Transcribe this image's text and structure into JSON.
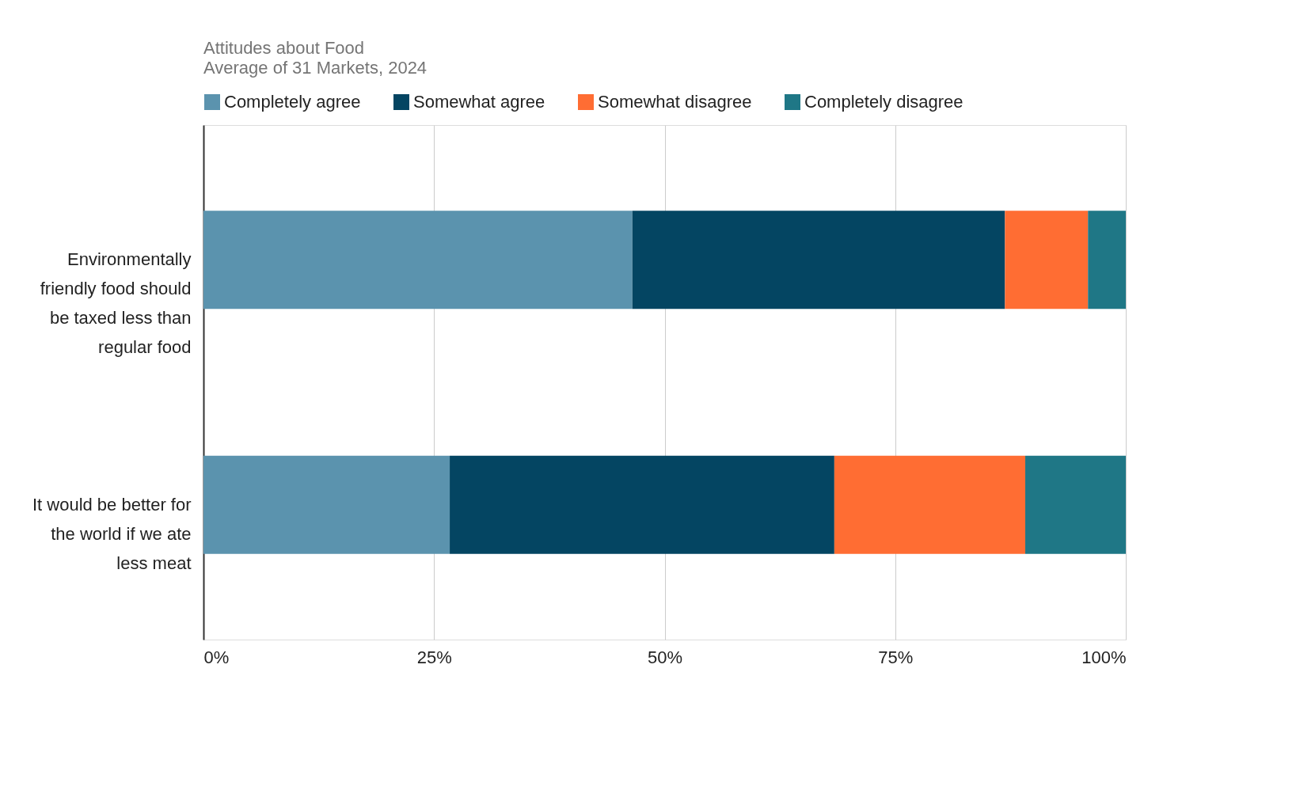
{
  "chart_data": {
    "type": "bar",
    "orientation": "horizontal",
    "stacked": true,
    "title": "Attitudes about Food",
    "subtitle": "Average of 31 Markets, 2024",
    "categories": [
      "Environmentally friendly food should be taxed less than regular food",
      "It would be better for the world if we ate less meat"
    ],
    "series": [
      {
        "name": "Completely agree",
        "color": "#5b93ae",
        "values": [
          46.5,
          26.7
        ]
      },
      {
        "name": "Somewhat agree",
        "color": "#044562",
        "values": [
          40.4,
          41.7
        ]
      },
      {
        "name": "Somewhat disagree",
        "color": "#ff6d33",
        "values": [
          9.0,
          20.7
        ]
      },
      {
        "name": "Completely disagree",
        "color": "#1f7786",
        "values": [
          4.1,
          10.9
        ]
      }
    ],
    "xlim": [
      0,
      100
    ],
    "xticks": [
      {
        "value": 0,
        "label": "0%"
      },
      {
        "value": 25,
        "label": "25%"
      },
      {
        "value": 50,
        "label": "50%"
      },
      {
        "value": 75,
        "label": "75%"
      },
      {
        "value": 100,
        "label": "100%"
      }
    ],
    "grid": "x",
    "legend": "top"
  }
}
